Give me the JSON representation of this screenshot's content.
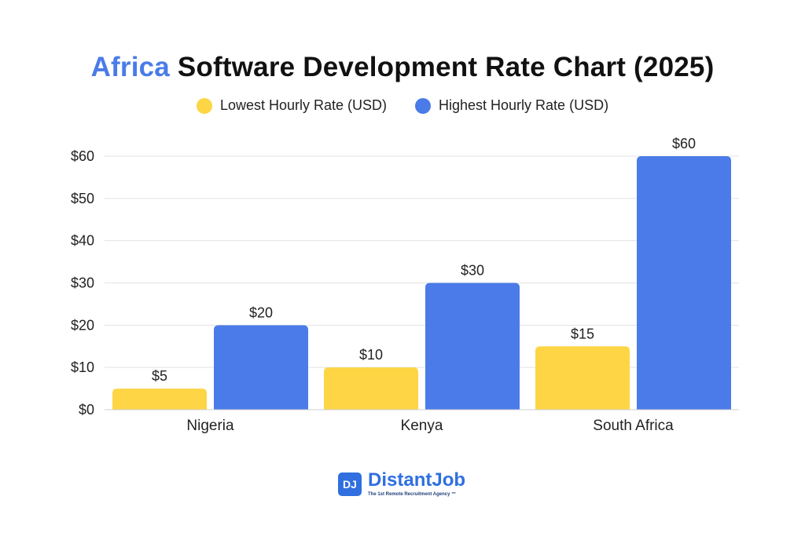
{
  "header": {
    "title_accent": "Africa",
    "title_rest": "Software Development Rate Chart (2025)"
  },
  "legend": [
    {
      "label": "Lowest Hourly Rate (USD)",
      "color": "#fdd545"
    },
    {
      "label": "Highest Hourly Rate (USD)",
      "color": "#4a7be8"
    }
  ],
  "chart_data": {
    "type": "bar",
    "title": "Africa Software Development Rate Chart (2025)",
    "categories": [
      "Nigeria",
      "Kenya",
      "South Africa"
    ],
    "series": [
      {
        "name": "Lowest Hourly Rate (USD)",
        "values": [
          5,
          10,
          15
        ],
        "labels": [
          "$5",
          "$10",
          "$15"
        ],
        "color": "#fdd545"
      },
      {
        "name": "Highest Hourly Rate (USD)",
        "values": [
          20,
          30,
          60
        ],
        "labels": [
          "$20",
          "$30",
          "$60"
        ],
        "color": "#4a7be8"
      }
    ],
    "yticks": [
      0,
      10,
      20,
      30,
      40,
      50,
      60
    ],
    "ytick_labels": [
      "$0",
      "$10",
      "$20",
      "$30",
      "$40",
      "$50",
      "$60"
    ],
    "ylim": [
      0,
      60
    ],
    "xlabel": "",
    "ylabel": "",
    "grid": true,
    "legend_position": "top-center"
  },
  "branding": {
    "badge": "DJ",
    "name": "DistantJob",
    "tagline": "The 1st Remote Recruitment Agency ™"
  }
}
